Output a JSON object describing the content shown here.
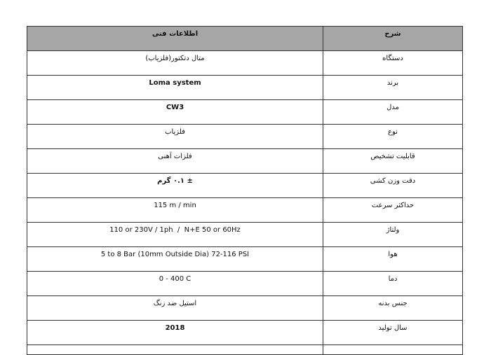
{
  "header": {
    "label_col": "شرح",
    "value_col": "اطلاعات فنی"
  },
  "rows": [
    {
      "label": "دستگاه",
      "value": "متال دتکتور(فلزیاب)"
    },
    {
      "label": "برند",
      "value": "Loma system"
    },
    {
      "label": "مدل",
      "value": "CW3"
    },
    {
      "label": "نوع",
      "value": "فلزیاب"
    },
    {
      "label": "قابلیت تشخیص",
      "value": "فلزات آهنی"
    },
    {
      "label": "دقت وزن کشی",
      "value": "± ۰.۱ گرم"
    },
    {
      "label": "حداکثر سرعت",
      "value": "115 m / min"
    },
    {
      "label": "ولتاژ",
      "value": "110 or 230V / 1ph  /  N+E 50 or 60Hz"
    },
    {
      "label": "هوا",
      "value": "5 to 8 Bar (10mm Outside Dia) 72-116 PSI"
    },
    {
      "label": "دما",
      "value": "0 - 400 C"
    },
    {
      "label": "جنس بدنه",
      "value": "استیل ضد زنگ"
    },
    {
      "label": "سال تولید",
      "value": "2018"
    }
  ]
}
